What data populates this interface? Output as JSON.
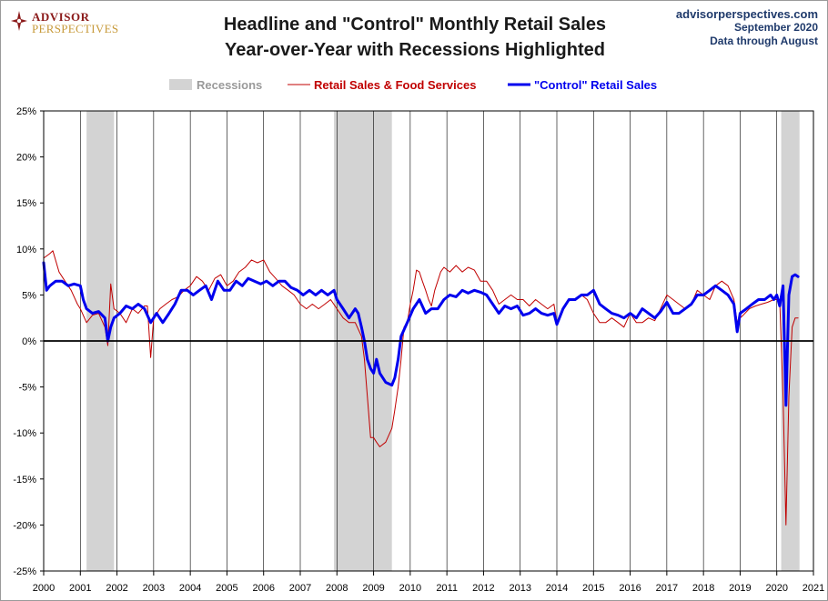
{
  "header": {
    "logo": {
      "line1": "ADVISOR",
      "line2": "PERSPECTIVES"
    },
    "title_line1": "Headline and \"Control\" Monthly Retail Sales",
    "title_line2": "Year-over-Year with Recessions Highlighted",
    "source_site": "advisorperspectives.com",
    "source_date": "September 2020",
    "source_note": "Data through August"
  },
  "chart_data": {
    "type": "line",
    "legend": [
      "Recessions",
      "Retail Sales & Food Services",
      "\"Control\" Retail Sales"
    ],
    "legend_placement": "top",
    "x_range": [
      2000,
      2021
    ],
    "x_ticks": [
      2000,
      2001,
      2002,
      2003,
      2004,
      2005,
      2006,
      2007,
      2008,
      2009,
      2010,
      2011,
      2012,
      2013,
      2014,
      2015,
      2016,
      2017,
      2018,
      2019,
      2020,
      2021
    ],
    "y_range": [
      -25,
      25
    ],
    "y_ticks": [
      -25,
      -20,
      -15,
      -10,
      -5,
      0,
      5,
      10,
      15,
      20,
      25
    ],
    "y_tick_format": "percent",
    "grid": "vertical at each year",
    "zero_line": true,
    "recessions": [
      [
        2001.17,
        2001.92
      ],
      [
        2007.92,
        2009.5
      ],
      [
        2020.12,
        2020.62
      ]
    ],
    "series": [
      {
        "name": "Retail Sales & Food Services",
        "color": "#c00000",
        "points": [
          [
            2000.0,
            9.0
          ],
          [
            2000.17,
            9.5
          ],
          [
            2000.25,
            9.8
          ],
          [
            2000.42,
            7.5
          ],
          [
            2000.58,
            6.5
          ],
          [
            2000.75,
            5.5
          ],
          [
            2000.92,
            4.0
          ],
          [
            2001.0,
            3.5
          ],
          [
            2001.17,
            2.0
          ],
          [
            2001.33,
            2.8
          ],
          [
            2001.5,
            3.0
          ],
          [
            2001.67,
            1.5
          ],
          [
            2001.75,
            -0.5
          ],
          [
            2001.83,
            6.2
          ],
          [
            2001.92,
            3.5
          ],
          [
            2002.08,
            3.0
          ],
          [
            2002.25,
            2.0
          ],
          [
            2002.42,
            3.5
          ],
          [
            2002.58,
            3.0
          ],
          [
            2002.75,
            3.8
          ],
          [
            2002.83,
            3.8
          ],
          [
            2002.92,
            -1.8
          ],
          [
            2003.0,
            2.5
          ],
          [
            2003.17,
            3.5
          ],
          [
            2003.33,
            4.0
          ],
          [
            2003.5,
            4.5
          ],
          [
            2003.67,
            4.8
          ],
          [
            2003.83,
            5.5
          ],
          [
            2004.0,
            6.0
          ],
          [
            2004.17,
            7.0
          ],
          [
            2004.33,
            6.5
          ],
          [
            2004.5,
            5.5
          ],
          [
            2004.67,
            6.8
          ],
          [
            2004.83,
            7.2
          ],
          [
            2005.0,
            6.0
          ],
          [
            2005.17,
            6.5
          ],
          [
            2005.33,
            7.5
          ],
          [
            2005.5,
            8.0
          ],
          [
            2005.67,
            8.8
          ],
          [
            2005.83,
            8.5
          ],
          [
            2006.0,
            8.8
          ],
          [
            2006.17,
            7.5
          ],
          [
            2006.33,
            6.8
          ],
          [
            2006.5,
            6.0
          ],
          [
            2006.67,
            5.5
          ],
          [
            2006.83,
            5.0
          ],
          [
            2007.0,
            4.0
          ],
          [
            2007.17,
            3.5
          ],
          [
            2007.33,
            4.0
          ],
          [
            2007.5,
            3.5
          ],
          [
            2007.67,
            4.0
          ],
          [
            2007.83,
            4.5
          ],
          [
            2008.0,
            3.5
          ],
          [
            2008.17,
            2.5
          ],
          [
            2008.33,
            2.0
          ],
          [
            2008.5,
            2.0
          ],
          [
            2008.67,
            0.5
          ],
          [
            2008.75,
            -2.0
          ],
          [
            2008.83,
            -6.0
          ],
          [
            2008.92,
            -10.5
          ],
          [
            2009.0,
            -10.5
          ],
          [
            2009.08,
            -11.0
          ],
          [
            2009.17,
            -11.5
          ],
          [
            2009.33,
            -11.0
          ],
          [
            2009.5,
            -9.5
          ],
          [
            2009.58,
            -7.5
          ],
          [
            2009.67,
            -5.0
          ],
          [
            2009.75,
            -2.0
          ],
          [
            2009.83,
            1.5
          ],
          [
            2009.92,
            2.0
          ],
          [
            2010.0,
            4.0
          ],
          [
            2010.08,
            5.5
          ],
          [
            2010.17,
            7.7
          ],
          [
            2010.25,
            7.5
          ],
          [
            2010.33,
            6.5
          ],
          [
            2010.42,
            5.5
          ],
          [
            2010.5,
            4.5
          ],
          [
            2010.58,
            3.8
          ],
          [
            2010.67,
            5.5
          ],
          [
            2010.75,
            6.5
          ],
          [
            2010.83,
            7.5
          ],
          [
            2010.92,
            8.0
          ],
          [
            2011.08,
            7.5
          ],
          [
            2011.25,
            8.2
          ],
          [
            2011.42,
            7.5
          ],
          [
            2011.58,
            8.0
          ],
          [
            2011.75,
            7.7
          ],
          [
            2011.92,
            6.5
          ],
          [
            2012.08,
            6.5
          ],
          [
            2012.25,
            5.5
          ],
          [
            2012.42,
            4.0
          ],
          [
            2012.58,
            4.5
          ],
          [
            2012.75,
            5.0
          ],
          [
            2012.92,
            4.5
          ],
          [
            2013.08,
            4.5
          ],
          [
            2013.25,
            3.8
          ],
          [
            2013.42,
            4.5
          ],
          [
            2013.58,
            4.0
          ],
          [
            2013.75,
            3.5
          ],
          [
            2013.92,
            4.0
          ],
          [
            2014.0,
            2.0
          ],
          [
            2014.17,
            3.5
          ],
          [
            2014.33,
            4.5
          ],
          [
            2014.5,
            4.5
          ],
          [
            2014.67,
            5.0
          ],
          [
            2014.83,
            4.5
          ],
          [
            2015.0,
            3.0
          ],
          [
            2015.17,
            2.0
          ],
          [
            2015.33,
            2.0
          ],
          [
            2015.5,
            2.5
          ],
          [
            2015.67,
            2.0
          ],
          [
            2015.83,
            1.5
          ],
          [
            2016.0,
            3.0
          ],
          [
            2016.17,
            2.0
          ],
          [
            2016.33,
            2.0
          ],
          [
            2016.5,
            2.5
          ],
          [
            2016.67,
            2.2
          ],
          [
            2016.83,
            3.5
          ],
          [
            2017.0,
            5.0
          ],
          [
            2017.17,
            4.5
          ],
          [
            2017.33,
            4.0
          ],
          [
            2017.5,
            3.5
          ],
          [
            2017.67,
            4.0
          ],
          [
            2017.83,
            5.5
          ],
          [
            2018.0,
            5.0
          ],
          [
            2018.17,
            4.5
          ],
          [
            2018.33,
            6.0
          ],
          [
            2018.5,
            6.5
          ],
          [
            2018.67,
            6.0
          ],
          [
            2018.83,
            4.5
          ],
          [
            2018.92,
            2.0
          ],
          [
            2019.0,
            2.5
          ],
          [
            2019.08,
            2.8
          ],
          [
            2019.25,
            3.5
          ],
          [
            2019.42,
            3.8
          ],
          [
            2019.58,
            4.0
          ],
          [
            2019.75,
            4.2
          ],
          [
            2019.92,
            4.5
          ],
          [
            2020.0,
            4.5
          ],
          [
            2020.08,
            4.5
          ],
          [
            2020.17,
            -6.0
          ],
          [
            2020.25,
            -20.0
          ],
          [
            2020.33,
            -6.0
          ],
          [
            2020.42,
            1.5
          ],
          [
            2020.5,
            2.5
          ],
          [
            2020.58,
            2.5
          ]
        ]
      },
      {
        "name": "\"Control\" Retail Sales",
        "color": "#0000ee",
        "points": [
          [
            2000.0,
            8.5
          ],
          [
            2000.08,
            5.5
          ],
          [
            2000.17,
            6.0
          ],
          [
            2000.33,
            6.5
          ],
          [
            2000.5,
            6.5
          ],
          [
            2000.67,
            6.0
          ],
          [
            2000.83,
            6.2
          ],
          [
            2001.0,
            6.0
          ],
          [
            2001.08,
            4.5
          ],
          [
            2001.17,
            3.5
          ],
          [
            2001.33,
            3.0
          ],
          [
            2001.5,
            3.2
          ],
          [
            2001.67,
            2.5
          ],
          [
            2001.75,
            0.0
          ],
          [
            2001.83,
            1.5
          ],
          [
            2001.92,
            2.5
          ],
          [
            2002.08,
            3.0
          ],
          [
            2002.25,
            3.8
          ],
          [
            2002.42,
            3.5
          ],
          [
            2002.58,
            4.0
          ],
          [
            2002.75,
            3.5
          ],
          [
            2002.92,
            2.0
          ],
          [
            2003.08,
            3.0
          ],
          [
            2003.25,
            2.0
          ],
          [
            2003.42,
            3.0
          ],
          [
            2003.58,
            4.0
          ],
          [
            2003.75,
            5.5
          ],
          [
            2003.92,
            5.5
          ],
          [
            2004.08,
            5.0
          ],
          [
            2004.25,
            5.5
          ],
          [
            2004.42,
            6.0
          ],
          [
            2004.58,
            4.5
          ],
          [
            2004.75,
            6.5
          ],
          [
            2004.92,
            5.5
          ],
          [
            2005.08,
            5.5
          ],
          [
            2005.25,
            6.5
          ],
          [
            2005.42,
            6.0
          ],
          [
            2005.58,
            6.8
          ],
          [
            2005.75,
            6.5
          ],
          [
            2005.92,
            6.2
          ],
          [
            2006.08,
            6.5
          ],
          [
            2006.25,
            6.0
          ],
          [
            2006.42,
            6.5
          ],
          [
            2006.58,
            6.5
          ],
          [
            2006.75,
            5.8
          ],
          [
            2006.92,
            5.5
          ],
          [
            2007.08,
            5.0
          ],
          [
            2007.25,
            5.5
          ],
          [
            2007.42,
            5.0
          ],
          [
            2007.58,
            5.5
          ],
          [
            2007.75,
            5.0
          ],
          [
            2007.92,
            5.5
          ],
          [
            2008.0,
            4.5
          ],
          [
            2008.17,
            3.5
          ],
          [
            2008.33,
            2.5
          ],
          [
            2008.5,
            3.5
          ],
          [
            2008.58,
            3.0
          ],
          [
            2008.67,
            1.5
          ],
          [
            2008.75,
            0.0
          ],
          [
            2008.83,
            -2.0
          ],
          [
            2008.92,
            -3.0
          ],
          [
            2009.0,
            -3.5
          ],
          [
            2009.08,
            -2.0
          ],
          [
            2009.17,
            -3.5
          ],
          [
            2009.33,
            -4.5
          ],
          [
            2009.5,
            -4.8
          ],
          [
            2009.58,
            -4.0
          ],
          [
            2009.67,
            -2.0
          ],
          [
            2009.75,
            0.5
          ],
          [
            2009.92,
            2.0
          ],
          [
            2010.08,
            3.5
          ],
          [
            2010.25,
            4.5
          ],
          [
            2010.42,
            3.0
          ],
          [
            2010.58,
            3.5
          ],
          [
            2010.75,
            3.5
          ],
          [
            2010.92,
            4.5
          ],
          [
            2011.08,
            5.0
          ],
          [
            2011.25,
            4.8
          ],
          [
            2011.42,
            5.5
          ],
          [
            2011.58,
            5.2
          ],
          [
            2011.75,
            5.5
          ],
          [
            2011.92,
            5.3
          ],
          [
            2012.08,
            5.0
          ],
          [
            2012.25,
            4.0
          ],
          [
            2012.42,
            3.0
          ],
          [
            2012.58,
            3.8
          ],
          [
            2012.75,
            3.5
          ],
          [
            2012.92,
            3.8
          ],
          [
            2013.08,
            2.8
          ],
          [
            2013.25,
            3.0
          ],
          [
            2013.42,
            3.5
          ],
          [
            2013.58,
            3.0
          ],
          [
            2013.75,
            2.8
          ],
          [
            2013.92,
            3.0
          ],
          [
            2014.0,
            1.8
          ],
          [
            2014.17,
            3.5
          ],
          [
            2014.33,
            4.5
          ],
          [
            2014.5,
            4.5
          ],
          [
            2014.67,
            5.0
          ],
          [
            2014.83,
            5.0
          ],
          [
            2015.0,
            5.5
          ],
          [
            2015.17,
            4.0
          ],
          [
            2015.33,
            3.5
          ],
          [
            2015.5,
            3.0
          ],
          [
            2015.67,
            2.8
          ],
          [
            2015.83,
            2.5
          ],
          [
            2016.0,
            3.0
          ],
          [
            2016.17,
            2.5
          ],
          [
            2016.33,
            3.5
          ],
          [
            2016.5,
            3.0
          ],
          [
            2016.67,
            2.5
          ],
          [
            2016.83,
            3.2
          ],
          [
            2017.0,
            4.2
          ],
          [
            2017.17,
            3.0
          ],
          [
            2017.33,
            3.0
          ],
          [
            2017.5,
            3.5
          ],
          [
            2017.67,
            4.0
          ],
          [
            2017.83,
            5.0
          ],
          [
            2018.0,
            5.0
          ],
          [
            2018.17,
            5.5
          ],
          [
            2018.33,
            6.0
          ],
          [
            2018.5,
            5.5
          ],
          [
            2018.67,
            5.0
          ],
          [
            2018.83,
            4.0
          ],
          [
            2018.92,
            1.0
          ],
          [
            2019.0,
            3.0
          ],
          [
            2019.17,
            3.5
          ],
          [
            2019.33,
            4.0
          ],
          [
            2019.5,
            4.5
          ],
          [
            2019.67,
            4.5
          ],
          [
            2019.83,
            5.0
          ],
          [
            2019.92,
            4.5
          ],
          [
            2020.0,
            5.0
          ],
          [
            2020.08,
            3.8
          ],
          [
            2020.17,
            6.0
          ],
          [
            2020.25,
            -7.0
          ],
          [
            2020.33,
            5.0
          ],
          [
            2020.42,
            7.0
          ],
          [
            2020.5,
            7.2
          ],
          [
            2020.58,
            7.0
          ]
        ]
      }
    ]
  }
}
